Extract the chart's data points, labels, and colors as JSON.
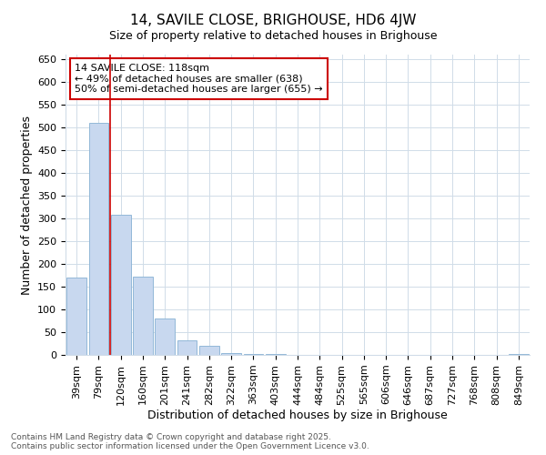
{
  "title": "14, SAVILE CLOSE, BRIGHOUSE, HD6 4JW",
  "subtitle": "Size of property relative to detached houses in Brighouse",
  "xlabel": "Distribution of detached houses by size in Brighouse",
  "ylabel": "Number of detached properties",
  "categories": [
    "39sqm",
    "79sqm",
    "120sqm",
    "160sqm",
    "201sqm",
    "241sqm",
    "282sqm",
    "322sqm",
    "363sqm",
    "403sqm",
    "444sqm",
    "484sqm",
    "525sqm",
    "565sqm",
    "606sqm",
    "646sqm",
    "687sqm",
    "727sqm",
    "768sqm",
    "808sqm",
    "849sqm"
  ],
  "values": [
    170,
    510,
    308,
    173,
    80,
    33,
    20,
    5,
    3,
    2,
    1,
    1,
    0,
    0,
    0,
    0,
    0,
    0,
    0,
    0,
    2
  ],
  "bar_color": "#c8d8ef",
  "bar_edge_color": "#92b8d8",
  "red_line_x": 1.5,
  "red_line_label": "14 SAVILE CLOSE: 118sqm",
  "annotation_line1": "← 49% of detached houses are smaller (638)",
  "annotation_line2": "50% of semi-detached houses are larger (655) →",
  "ylim": [
    0,
    660
  ],
  "yticks": [
    0,
    50,
    100,
    150,
    200,
    250,
    300,
    350,
    400,
    450,
    500,
    550,
    600,
    650
  ],
  "annotation_box_color": "#cc0000",
  "footer_line1": "Contains HM Land Registry data © Crown copyright and database right 2025.",
  "footer_line2": "Contains public sector information licensed under the Open Government Licence v3.0.",
  "background_color": "#ffffff",
  "grid_color": "#d0dce8",
  "title_fontsize": 11,
  "subtitle_fontsize": 9,
  "axis_label_fontsize": 9,
  "tick_fontsize": 8,
  "annotation_fontsize": 8,
  "footer_fontsize": 6.5
}
